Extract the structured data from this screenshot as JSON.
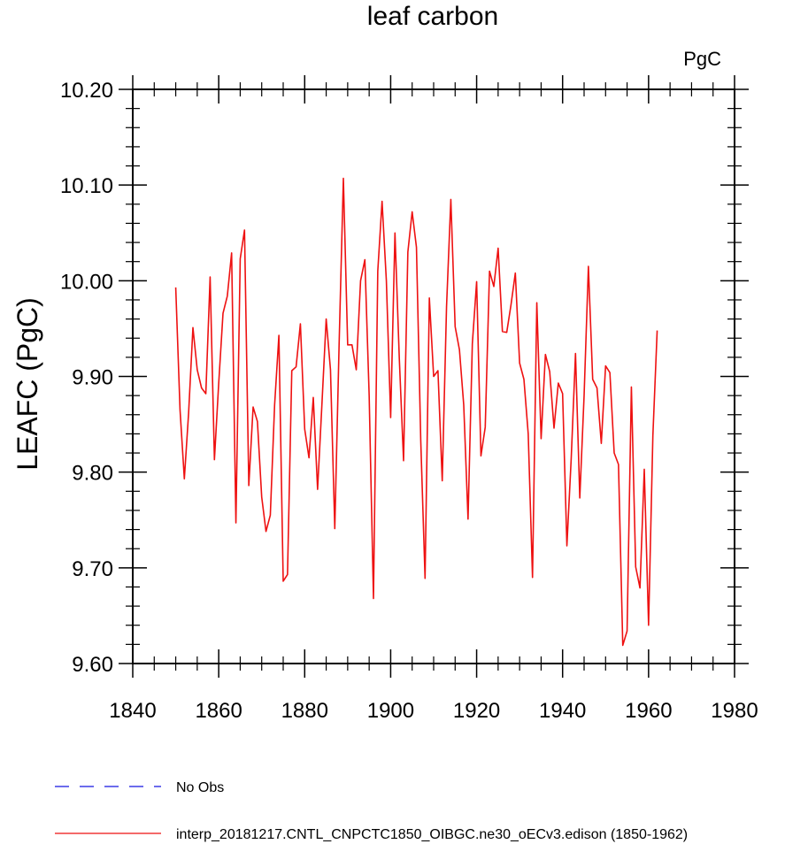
{
  "chart_data": {
    "type": "line",
    "title": "leaf carbon",
    "units": "PgC",
    "ylabel": "LEAFC  (PgC)",
    "xlabel": "",
    "xlim": [
      1840,
      1980
    ],
    "ylim": [
      9.6,
      10.2
    ],
    "xticks": [
      1840,
      1860,
      1880,
      1900,
      1920,
      1940,
      1960,
      1980
    ],
    "yticks": [
      9.6,
      9.7,
      9.8,
      9.9,
      10.0,
      10.1,
      10.2
    ],
    "xtick_labels": [
      "1840",
      "1860",
      "1880",
      "1900",
      "1920",
      "1940",
      "1960",
      "1980"
    ],
    "ytick_labels": [
      "9.60",
      "9.70",
      "9.80",
      "9.90",
      "10.00",
      "10.10",
      "10.20"
    ],
    "x_minor_step": 5,
    "y_minor_step": 0.02,
    "grid": false,
    "legend_position": "bottom-left",
    "series": [
      {
        "name": "No Obs",
        "color": "#1515e0",
        "dash": "dashed",
        "x": [],
        "values": []
      },
      {
        "name": "interp_20181217.CNTL_CNPCTC1850_OIBGC.ne30_oECv3.edison (1850-1962)",
        "color": "#ee1111",
        "dash": "solid",
        "x": [
          1850,
          1851,
          1852,
          1853,
          1854,
          1855,
          1856,
          1857,
          1858,
          1859,
          1860,
          1861,
          1862,
          1863,
          1864,
          1865,
          1866,
          1867,
          1868,
          1869,
          1870,
          1871,
          1872,
          1873,
          1874,
          1875,
          1876,
          1877,
          1878,
          1879,
          1880,
          1881,
          1882,
          1883,
          1884,
          1885,
          1886,
          1887,
          1888,
          1889,
          1890,
          1891,
          1892,
          1893,
          1894,
          1895,
          1896,
          1897,
          1898,
          1899,
          1900,
          1901,
          1902,
          1903,
          1904,
          1905,
          1906,
          1907,
          1908,
          1909,
          1910,
          1911,
          1912,
          1913,
          1914,
          1915,
          1916,
          1917,
          1918,
          1919,
          1920,
          1921,
          1922,
          1923,
          1924,
          1925,
          1926,
          1927,
          1928,
          1929,
          1930,
          1931,
          1932,
          1933,
          1934,
          1935,
          1936,
          1937,
          1938,
          1939,
          1940,
          1941,
          1942,
          1943,
          1944,
          1945,
          1946,
          1947,
          1948,
          1949,
          1950,
          1951,
          1952,
          1953,
          1954,
          1955,
          1956,
          1957,
          1958,
          1959,
          1960,
          1961,
          1962
        ],
        "values": [
          9.993,
          9.865,
          9.793,
          9.862,
          9.951,
          9.907,
          9.888,
          9.882,
          10.004,
          9.813,
          9.893,
          9.966,
          9.984,
          10.029,
          9.747,
          10.023,
          10.053,
          9.786,
          9.868,
          9.853,
          9.774,
          9.738,
          9.755,
          9.87,
          9.943,
          9.686,
          9.693,
          9.906,
          9.91,
          9.955,
          9.845,
          9.815,
          9.878,
          9.782,
          9.87,
          9.96,
          9.907,
          9.741,
          9.932,
          10.107,
          9.933,
          9.933,
          9.907,
          10.0,
          10.022,
          9.88,
          9.668,
          10.01,
          10.083,
          10.0,
          9.857,
          10.05,
          9.92,
          9.812,
          10.03,
          10.072,
          10.035,
          9.833,
          9.689,
          9.982,
          9.9,
          9.906,
          9.791,
          9.973,
          10.085,
          9.952,
          9.928,
          9.87,
          9.751,
          9.934,
          9.999,
          9.817,
          9.847,
          10.01,
          9.994,
          10.034,
          9.947,
          9.946,
          9.975,
          10.008,
          9.914,
          9.897,
          9.84,
          9.69,
          9.977,
          9.835,
          9.923,
          9.905,
          9.846,
          9.893,
          9.882,
          9.723,
          9.814,
          9.924,
          9.773,
          9.88,
          10.015,
          9.897,
          9.888,
          9.83,
          9.911,
          9.904,
          9.82,
          9.808,
          9.619,
          9.634,
          9.889,
          9.701,
          9.679,
          9.803,
          9.64,
          9.838,
          9.948
        ]
      }
    ]
  }
}
